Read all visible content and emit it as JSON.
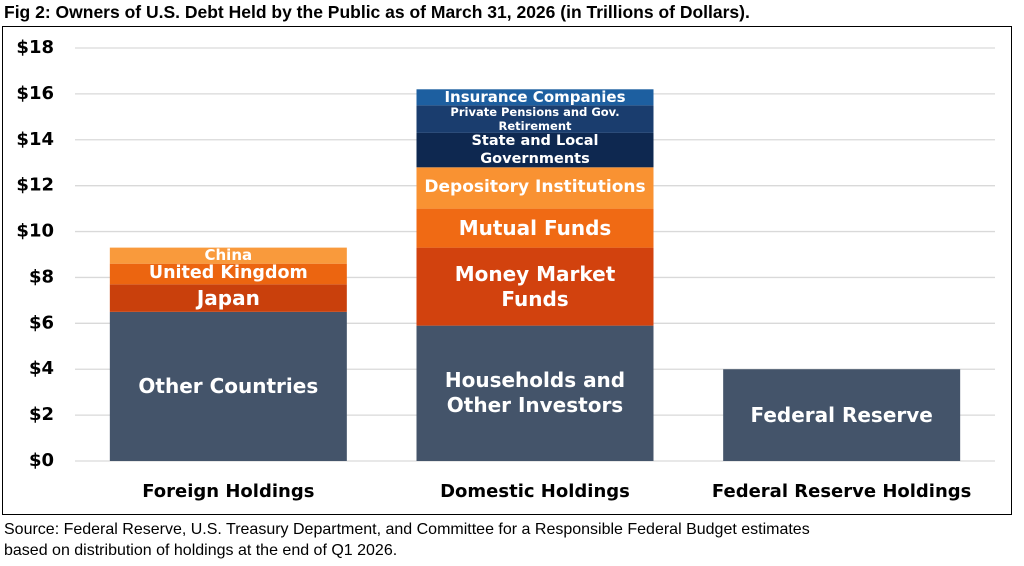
{
  "chart_data": {
    "type": "stacked-bar",
    "title": "Fig 2: Owners of U.S. Debt Held by the Public as of March 31, 2026 (in Trillions of Dollars).",
    "source": "Source: Federal Reserve, U.S. Treasury Department, and Committee for a Responsible Federal Budget estimates based on distribution of holdings at the end of Q1 2026.",
    "categories": [
      "Foreign Holdings",
      "Domestic Holdings",
      "Federal Reserve Holdings"
    ],
    "series": [
      {
        "name": "Other Countries",
        "color": "#44546a",
        "values": [
          6.5,
          null,
          null
        ]
      },
      {
        "name": "Japan",
        "color": "#c9400c",
        "values": [
          1.2,
          null,
          null
        ]
      },
      {
        "name": "United Kingdom",
        "color": "#ec6510",
        "values": [
          0.9,
          null,
          null
        ]
      },
      {
        "name": "China",
        "color": "#f99a3c",
        "values": [
          0.7,
          null,
          null
        ]
      },
      {
        "name": "Households and Other Investors",
        "color": "#44546a",
        "values": [
          null,
          5.9,
          null
        ]
      },
      {
        "name": "Money Market Funds",
        "color": "#d2420e",
        "values": [
          null,
          3.4,
          null
        ]
      },
      {
        "name": "Mutual Funds",
        "color": "#f06a14",
        "values": [
          null,
          1.7,
          null
        ]
      },
      {
        "name": "Depository Institutions",
        "color": "#f99232",
        "values": [
          null,
          1.8,
          null
        ]
      },
      {
        "name": "State and Local Governments",
        "color": "#0e2850",
        "values": [
          null,
          1.5,
          null
        ]
      },
      {
        "name": "Private Pensions and Gov. Retirement",
        "color": "#1a3d6e",
        "values": [
          null,
          1.2,
          null
        ]
      },
      {
        "name": "Insurance Companies",
        "color": "#1d5fa0",
        "values": [
          null,
          0.7,
          null
        ]
      },
      {
        "name": "Federal Reserve",
        "color": "#44546a",
        "values": [
          null,
          null,
          4.0
        ]
      }
    ],
    "ylim": [
      0,
      18
    ],
    "yticks": [
      {
        "value": 0,
        "label": "$0"
      },
      {
        "value": 2,
        "label": "$2"
      },
      {
        "value": 4,
        "label": "$4"
      },
      {
        "value": 6,
        "label": "$6"
      },
      {
        "value": 8,
        "label": "$8"
      },
      {
        "value": 10,
        "label": "$10"
      },
      {
        "value": 12,
        "label": "$12"
      },
      {
        "value": 14,
        "label": "$14"
      },
      {
        "value": 16,
        "label": "$16"
      },
      {
        "value": 18,
        "label": "$18"
      }
    ],
    "grid": true
  }
}
